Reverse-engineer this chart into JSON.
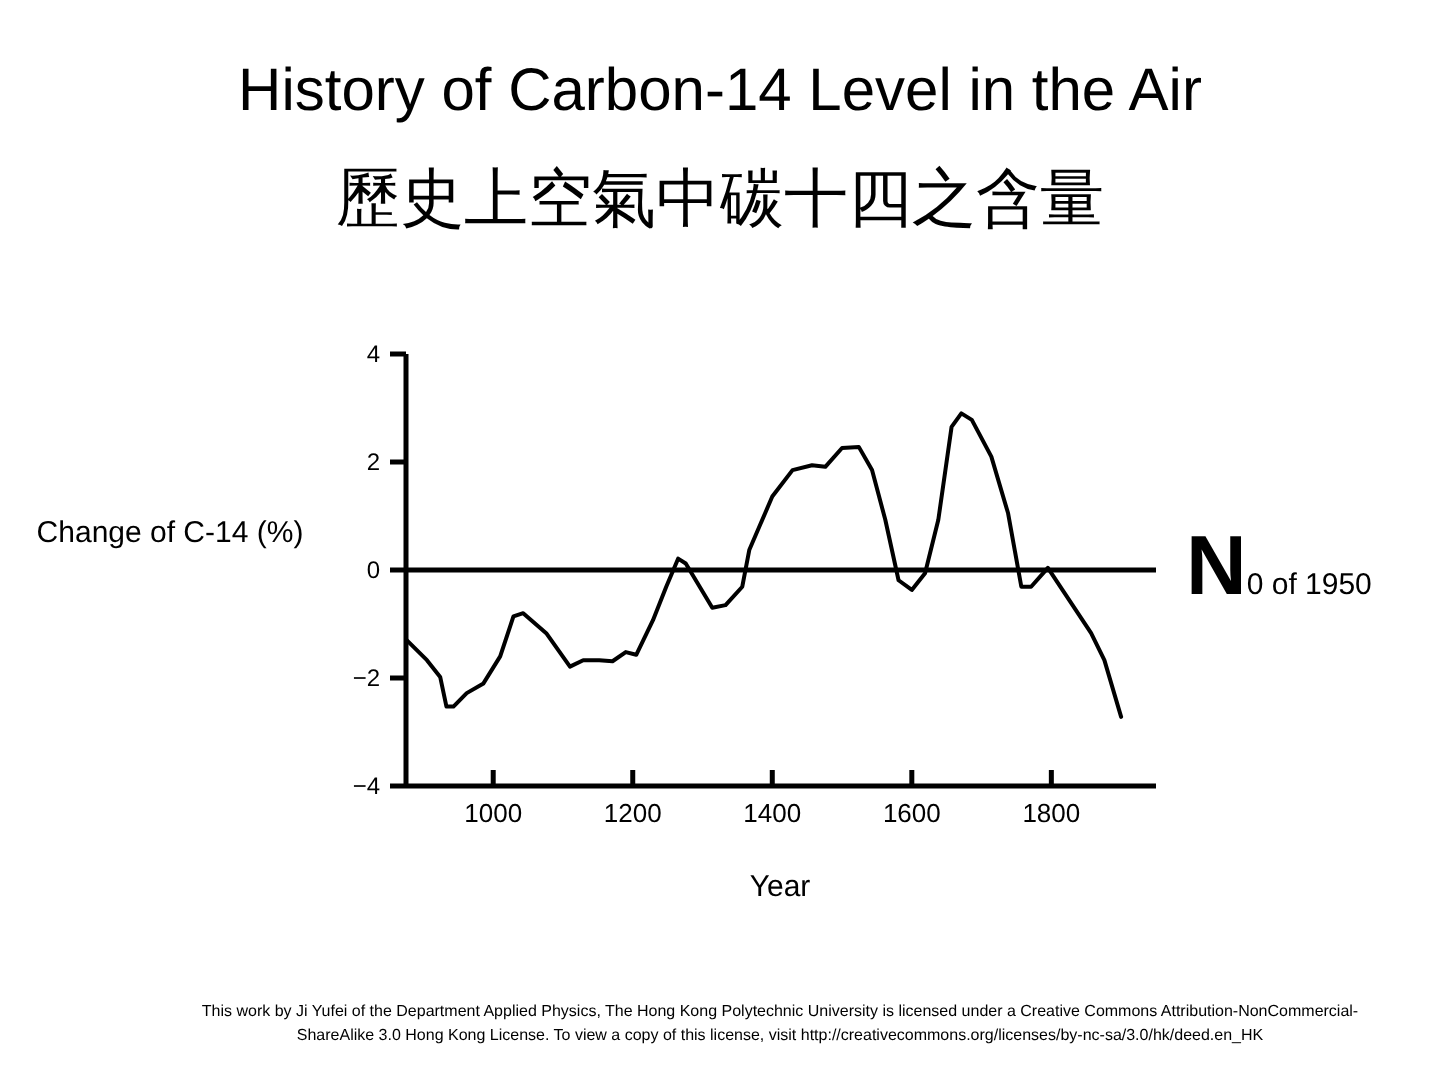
{
  "chart_data": {
    "type": "line",
    "title": "History of Carbon-14 Level in the Air",
    "subtitle": "歷史上空氣中碳十四之含量",
    "xlabel": "Year",
    "ylabel": "Change of C-14 (%)",
    "x": [
      876,
      905,
      924,
      933,
      943,
      962,
      986,
      1010,
      1029,
      1043,
      1076,
      1110,
      1129,
      1152,
      1171,
      1190,
      1205,
      1229,
      1248,
      1265,
      1276,
      1314,
      1333,
      1357,
      1367,
      1400,
      1429,
      1457,
      1476,
      1500,
      1524,
      1543,
      1562,
      1581,
      1600,
      1619,
      1638,
      1657,
      1671,
      1686,
      1714,
      1738,
      1757,
      1771,
      1795,
      1819,
      1857,
      1876,
      1900
    ],
    "series": [
      {
        "color": "#000000",
        "values": [
          -1.3,
          -1.67,
          -1.98,
          -2.53,
          -2.53,
          -2.28,
          -2.1,
          -1.6,
          -0.86,
          -0.8,
          -1.17,
          -1.79,
          -1.67,
          -1.67,
          -1.69,
          -1.52,
          -1.57,
          -0.93,
          -0.31,
          0.21,
          0.12,
          -0.7,
          -0.65,
          -0.31,
          0.37,
          1.36,
          1.85,
          1.94,
          1.91,
          2.26,
          2.28,
          1.85,
          0.93,
          -0.19,
          -0.37,
          -0.06,
          0.93,
          2.65,
          2.9,
          2.78,
          2.1,
          1.05,
          -0.31,
          -0.31,
          0.04,
          -0.43,
          -1.17,
          -1.67,
          -2.72
        ]
      }
    ],
    "xlim": [
      875,
      1950
    ],
    "ylim": [
      -4,
      4
    ],
    "xticks": [
      1000,
      1200,
      1400,
      1600,
      1800
    ],
    "yticks": [
      -4,
      -2,
      0,
      2,
      4
    ],
    "ref_lines": [
      {
        "axis": "y",
        "value": 0,
        "label": "N0 of 1950"
      }
    ],
    "grid": false,
    "marker": "none",
    "line_style": "solid",
    "annotations": [
      "This work by Ji Yufei of the Department Applied Physics, The Hong Kong Polytechnic University is licensed under a Creative Commons Attribution-NonCommercial-ShareAlike 3.0 Hong Kong License. To view a copy of this license, visit http://creativecommons.org/licenses/by-nc-sa/3.0/hk/deed.en_HK"
    ]
  }
}
